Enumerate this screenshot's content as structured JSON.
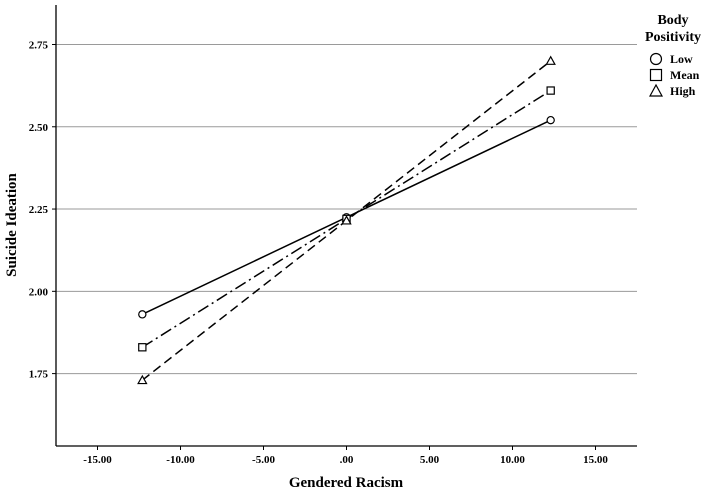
{
  "chart_data": {
    "type": "line",
    "title": "",
    "xlabel": "Gendered Racism",
    "ylabel": "Suicide Ideation",
    "xlim": [
      -17.5,
      17.5
    ],
    "ylim": [
      1.53,
      2.87
    ],
    "xticks": [
      -15,
      -10,
      -5,
      0,
      5,
      10,
      15
    ],
    "xtick_labels": [
      "-15.00",
      "-10.00",
      "-5.00",
      ".00",
      "5.00",
      "10.00",
      "15.00"
    ],
    "yticks": [
      1.75,
      2.0,
      2.25,
      2.5,
      2.75
    ],
    "ytick_labels": [
      "1.75",
      "2.00",
      "2.25",
      "2.50",
      "2.75"
    ],
    "grid": "horizontal",
    "legend": {
      "title": "Body Positivity",
      "title_lines": [
        "Body",
        "Positivity"
      ],
      "position": "top-right, outside plot"
    },
    "series": [
      {
        "name": "Low",
        "marker": "circle",
        "dash": "solid",
        "color": "#000000",
        "x": [
          -12.3,
          0,
          12.3
        ],
        "y": [
          1.93,
          2.225,
          2.52
        ]
      },
      {
        "name": "Mean",
        "marker": "square",
        "dash": "dash-dot",
        "color": "#000000",
        "x": [
          -12.3,
          0,
          12.3
        ],
        "y": [
          1.83,
          2.22,
          2.61
        ]
      },
      {
        "name": "High",
        "marker": "triangle",
        "dash": "dashed",
        "color": "#000000",
        "x": [
          -12.3,
          0,
          12.3
        ],
        "y": [
          1.73,
          2.215,
          2.7
        ]
      }
    ]
  }
}
